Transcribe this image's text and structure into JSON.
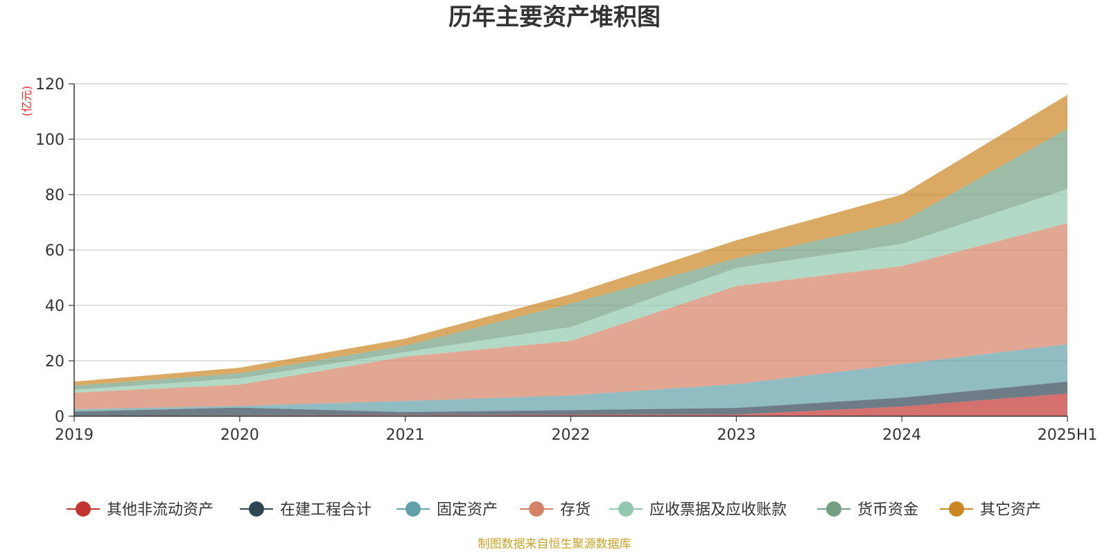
{
  "chart_data": {
    "type": "area",
    "stacked": true,
    "title": "历年主要资产堆积图",
    "ylabel": "(亿元)",
    "ylim": [
      0,
      120
    ],
    "yticks": [
      0,
      20,
      40,
      60,
      80,
      100,
      120
    ],
    "grid": true,
    "legend_position": "bottom",
    "categories": [
      "2019",
      "2020",
      "2021",
      "2022",
      "2023",
      "2024",
      "2025H1"
    ],
    "series": [
      {
        "name": "其他非流动资产",
        "color": "#c23531",
        "values": [
          0.2,
          0.3,
          0.4,
          0.5,
          0.6,
          3.5,
          8.2
        ]
      },
      {
        "name": "在建工程合计",
        "color": "#2f4554",
        "values": [
          1.5,
          2.8,
          1.1,
          1.7,
          2.4,
          3.2,
          4.3
        ]
      },
      {
        "name": "固定资产",
        "color": "#61a0a8",
        "values": [
          0.8,
          0.6,
          4.0,
          5.3,
          8.6,
          12.1,
          13.5
        ]
      },
      {
        "name": "存货",
        "color": "#d48265",
        "values": [
          6.0,
          7.7,
          16.0,
          19.7,
          35.4,
          35.4,
          43.7
        ]
      },
      {
        "name": "应收票据及应收账款",
        "color": "#91c7ae",
        "values": [
          1.0,
          2.3,
          1.7,
          5.0,
          6.5,
          8.0,
          12.3
        ]
      },
      {
        "name": "货币资金",
        "color": "#749f83",
        "values": [
          1.5,
          1.8,
          2.3,
          8.5,
          3.5,
          8.0,
          21.8
        ]
      },
      {
        "name": "其它资产",
        "color": "#ca8622",
        "values": [
          1.5,
          2.0,
          2.5,
          3.3,
          6.5,
          9.8,
          12.2
        ]
      }
    ]
  },
  "footer": {
    "source": "制图数据来自恒生聚源数据库"
  }
}
